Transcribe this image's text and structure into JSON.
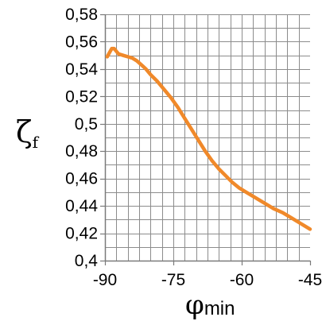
{
  "chart_data": {
    "type": "line",
    "title": "",
    "xlabel": "φ",
    "xlabel_subscript": "min",
    "ylabel": "ζ",
    "ylabel_subscript": "f",
    "xlim": [
      -90,
      -45
    ],
    "ylim": [
      0.4,
      0.58
    ],
    "xticks": [
      -90,
      -75,
      -60,
      -45
    ],
    "xtick_labels": [
      "-90",
      "-75",
      "-60",
      "-45"
    ],
    "yticks": [
      0.4,
      0.42,
      0.44,
      0.46,
      0.48,
      0.5,
      0.52,
      0.54,
      0.56,
      0.58
    ],
    "ytick_labels": [
      "0,4",
      "0,42",
      "0,44",
      "0,46",
      "0,48",
      "0,5",
      "0,52",
      "0,54",
      "0,56",
      "0,58"
    ],
    "grid": true,
    "grid_x_step": 2.5,
    "grid_y_step": 0.01,
    "series": [
      {
        "color": "#f0892a",
        "x": [
          -89.5,
          -89.0,
          -88.5,
          -88.0,
          -87.5,
          -87.0,
          -86.0,
          -85.0,
          -84.0,
          -83.0,
          -82.0,
          -81.0,
          -80.0,
          -78.5,
          -77.0,
          -75.5,
          -74.0,
          -72.5,
          -71.0,
          -69.5,
          -68.0,
          -66.5,
          -65.0,
          -63.5,
          -62.0,
          -60.5,
          -59.0,
          -57.0,
          -55.0,
          -53.0,
          -51.0,
          -49.0,
          -47.0,
          -45.0
        ],
        "y": [
          0.549,
          0.552,
          0.555,
          0.555,
          0.553,
          0.551,
          0.55,
          0.549,
          0.548,
          0.546,
          0.543,
          0.54,
          0.536,
          0.531,
          0.525,
          0.519,
          0.512,
          0.504,
          0.496,
          0.488,
          0.48,
          0.473,
          0.467,
          0.462,
          0.457,
          0.453,
          0.45,
          0.446,
          0.442,
          0.438,
          0.435,
          0.431,
          0.427,
          0.423
        ]
      }
    ]
  }
}
